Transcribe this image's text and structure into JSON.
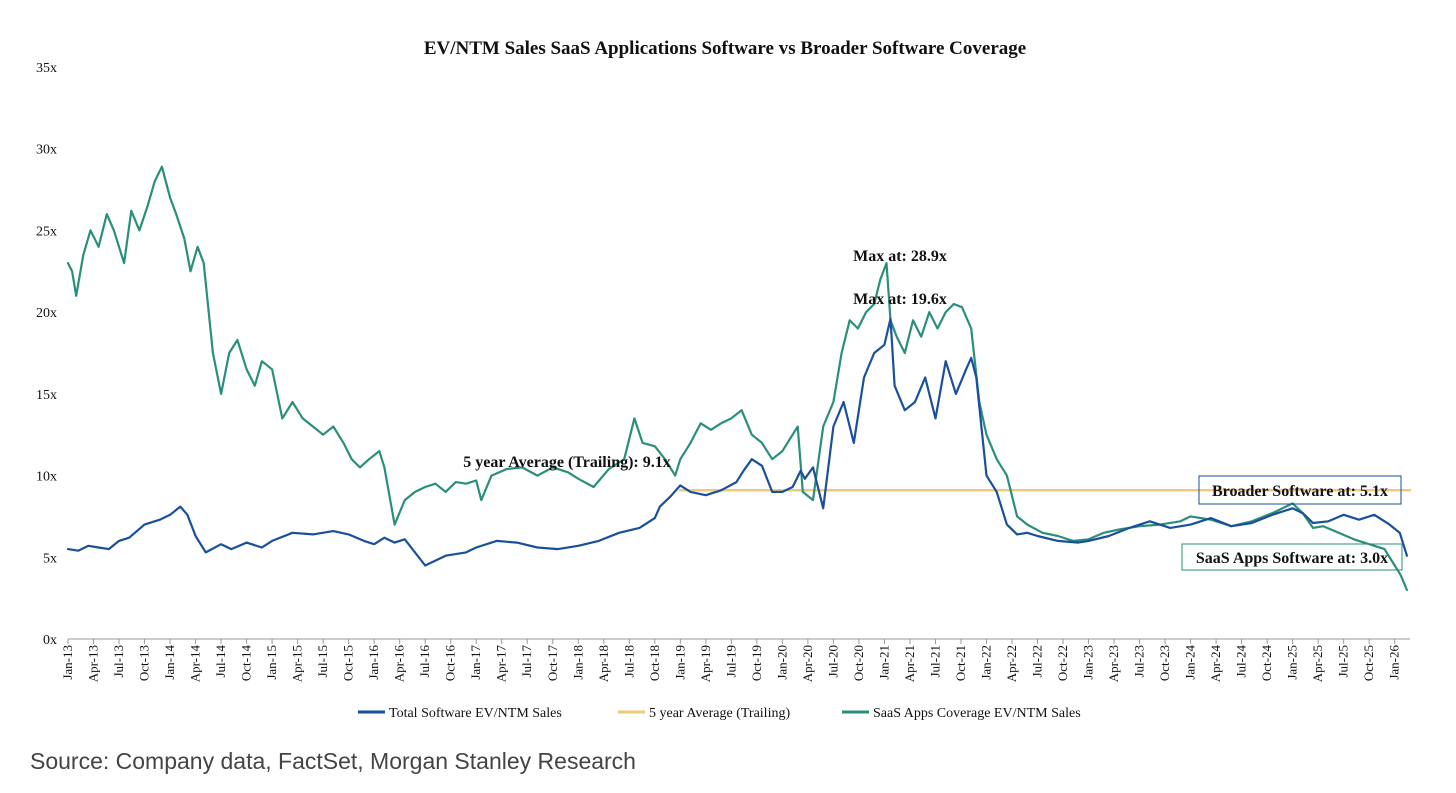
{
  "chart_data": {
    "type": "line",
    "title": "EV/NTM Sales SaaS Applications Software vs Broader Software Coverage",
    "ylim": [
      0,
      35
    ],
    "y_ticks": [
      0,
      5,
      10,
      15,
      20,
      25,
      30,
      35
    ],
    "y_tick_labels": [
      "0x",
      "5x",
      "10x",
      "15x",
      "20x",
      "25x",
      "30x",
      "35x"
    ],
    "x_range": [
      2013.0,
      2026.15
    ],
    "x_tick_labels": [
      "Jan-13",
      "Apr-13",
      "Jul-13",
      "Oct-13",
      "Jan-14",
      "Apr-14",
      "Jul-14",
      "Oct-14",
      "Jan-15",
      "Apr-15",
      "Jul-15",
      "Oct-15",
      "Jan-16",
      "Apr-16",
      "Jul-16",
      "Oct-16",
      "Jan-17",
      "Apr-17",
      "Jul-17",
      "Oct-17",
      "Jan-18",
      "Apr-18",
      "Jul-18",
      "Oct-18",
      "Jan-19",
      "Apr-19",
      "Jul-19",
      "Oct-19",
      "Jan-20",
      "Apr-20",
      "Jul-20",
      "Oct-20",
      "Jan-21",
      "Apr-21",
      "Jul-21",
      "Oct-21",
      "Jan-22",
      "Apr-22",
      "Jul-22",
      "Oct-22",
      "Jan-23",
      "Apr-23",
      "Jul-23",
      "Oct-23",
      "Jan-24",
      "Apr-24",
      "Jul-24",
      "Oct-24",
      "Jan-25",
      "Apr-25",
      "Jul-25",
      "Oct-25",
      "Jan-26"
    ],
    "legend": [
      "Total Software EV/NTM Sales",
      "5 year Average (Trailing)",
      "SaaS Apps Coverage EV/NTM Sales"
    ],
    "legend_position": "bottom",
    "series": [
      {
        "name": "Total Software EV/NTM Sales",
        "color": "#1a4f9c",
        "x": [
          2013.0,
          2013.1,
          2013.2,
          2013.3,
          2013.4,
          2013.5,
          2013.6,
          2013.75,
          2013.9,
          2014.0,
          2014.1,
          2014.17,
          2014.25,
          2014.35,
          2014.5,
          2014.6,
          2014.75,
          2014.9,
          2015.0,
          2015.2,
          2015.4,
          2015.6,
          2015.75,
          2015.9,
          2016.0,
          2016.1,
          2016.2,
          2016.3,
          2016.5,
          2016.7,
          2016.9,
          2017.0,
          2017.2,
          2017.4,
          2017.6,
          2017.8,
          2018.0,
          2018.2,
          2018.4,
          2018.6,
          2018.75,
          2018.8,
          2018.9,
          2019.0,
          2019.1,
          2019.25,
          2019.4,
          2019.55,
          2019.62,
          2019.7,
          2019.8,
          2019.9,
          2020.0,
          2020.1,
          2020.18,
          2020.22,
          2020.3,
          2020.4,
          2020.5,
          2020.6,
          2020.7,
          2020.8,
          2020.9,
          2021.0,
          2021.06,
          2021.1,
          2021.2,
          2021.3,
          2021.4,
          2021.5,
          2021.6,
          2021.7,
          2021.8,
          2021.85,
          2021.9,
          2022.0,
          2022.1,
          2022.2,
          2022.3,
          2022.4,
          2022.5,
          2022.7,
          2022.9,
          2023.0,
          2023.2,
          2023.4,
          2023.6,
          2023.8,
          2024.0,
          2024.2,
          2024.4,
          2024.6,
          2024.8,
          2025.0,
          2025.1,
          2025.2,
          2025.35,
          2025.5,
          2025.65,
          2025.8,
          2025.95,
          2026.05,
          2026.12
        ],
        "y": [
          5.5,
          5.4,
          5.7,
          5.6,
          5.5,
          6.0,
          6.2,
          7.0,
          7.3,
          7.6,
          8.1,
          7.6,
          6.3,
          5.3,
          5.8,
          5.5,
          5.9,
          5.6,
          6.0,
          6.5,
          6.4,
          6.6,
          6.4,
          6.0,
          5.8,
          6.2,
          5.9,
          6.1,
          4.5,
          5.1,
          5.3,
          5.6,
          6.0,
          5.9,
          5.6,
          5.5,
          5.7,
          6.0,
          6.5,
          6.8,
          7.4,
          8.1,
          8.7,
          9.4,
          9.0,
          8.8,
          9.1,
          9.6,
          10.3,
          11.0,
          10.6,
          9.0,
          9.0,
          9.3,
          10.3,
          9.8,
          10.5,
          8.0,
          13.0,
          14.5,
          12.0,
          16.0,
          17.5,
          18.0,
          19.6,
          15.5,
          14.0,
          14.5,
          16.0,
          13.5,
          17.0,
          15.0,
          16.5,
          17.2,
          16.0,
          10.0,
          9.0,
          7.0,
          6.4,
          6.5,
          6.3,
          6.0,
          5.9,
          6.0,
          6.3,
          6.8,
          7.2,
          6.8,
          7.0,
          7.4,
          6.9,
          7.1,
          7.6,
          8.0,
          7.7,
          7.1,
          7.2,
          7.6,
          7.3,
          7.6,
          7.0,
          6.5,
          5.1
        ]
      },
      {
        "name": "5 year Average (Trailing)",
        "color": "#f2c879",
        "x": [
          2019.0,
          2026.15
        ],
        "y": [
          9.1,
          9.1
        ]
      },
      {
        "name": "SaaS Apps Coverage EV/NTM Sales",
        "color": "#2a8f7a",
        "x": [
          2013.0,
          2013.04,
          2013.08,
          2013.15,
          2013.22,
          2013.3,
          2013.38,
          2013.45,
          2013.55,
          2013.62,
          2013.7,
          2013.78,
          2013.85,
          2013.92,
          2014.0,
          2014.06,
          2014.14,
          2014.2,
          2014.27,
          2014.33,
          2014.42,
          2014.5,
          2014.58,
          2014.66,
          2014.75,
          2014.83,
          2014.9,
          2015.0,
          2015.1,
          2015.2,
          2015.3,
          2015.4,
          2015.5,
          2015.6,
          2015.7,
          2015.78,
          2015.86,
          2015.95,
          2016.05,
          2016.1,
          2016.2,
          2016.3,
          2016.4,
          2016.5,
          2016.6,
          2016.7,
          2016.8,
          2016.9,
          2017.0,
          2017.05,
          2017.15,
          2017.3,
          2017.45,
          2017.6,
          2017.75,
          2017.9,
          2018.0,
          2018.15,
          2018.3,
          2018.45,
          2018.55,
          2018.63,
          2018.75,
          2018.85,
          2018.95,
          2019.0,
          2019.1,
          2019.2,
          2019.3,
          2019.4,
          2019.5,
          2019.6,
          2019.7,
          2019.8,
          2019.9,
          2020.0,
          2020.1,
          2020.15,
          2020.2,
          2020.3,
          2020.4,
          2020.5,
          2020.58,
          2020.66,
          2020.74,
          2020.82,
          2020.9,
          2020.96,
          2021.02,
          2021.06,
          2021.12,
          2021.2,
          2021.28,
          2021.36,
          2021.44,
          2021.52,
          2021.6,
          2021.68,
          2021.76,
          2021.85,
          2021.93,
          2022.0,
          2022.1,
          2022.2,
          2022.3,
          2022.4,
          2022.55,
          2022.7,
          2022.85,
          2023.0,
          2023.15,
          2023.3,
          2023.5,
          2023.7,
          2023.9,
          2024.0,
          2024.2,
          2024.4,
          2024.6,
          2024.8,
          2025.0,
          2025.1,
          2025.2,
          2025.3,
          2025.45,
          2025.6,
          2025.75,
          2025.9,
          2026.0,
          2026.06,
          2026.12
        ],
        "y": [
          23.0,
          22.5,
          21.0,
          23.5,
          25.0,
          24.0,
          26.0,
          25.0,
          23.0,
          26.2,
          25.0,
          26.5,
          28.0,
          28.9,
          27.0,
          26.0,
          24.5,
          22.5,
          24.0,
          23.0,
          17.5,
          15.0,
          17.5,
          18.3,
          16.5,
          15.5,
          17.0,
          16.5,
          13.5,
          14.5,
          13.5,
          13.0,
          12.5,
          13.0,
          12.0,
          11.0,
          10.5,
          11.0,
          11.5,
          10.5,
          7.0,
          8.5,
          9.0,
          9.3,
          9.5,
          9.0,
          9.6,
          9.5,
          9.7,
          8.5,
          10.0,
          10.4,
          10.5,
          10.0,
          10.5,
          10.2,
          9.8,
          9.3,
          10.4,
          11.0,
          13.5,
          12.0,
          11.8,
          11.0,
          10.0,
          11.0,
          12.0,
          13.2,
          12.8,
          13.2,
          13.5,
          14.0,
          12.5,
          12.0,
          11.0,
          11.5,
          12.5,
          13.0,
          9.0,
          8.5,
          13.0,
          14.5,
          17.5,
          19.5,
          19.0,
          20.0,
          20.5,
          22.0,
          23.0,
          19.5,
          18.5,
          17.5,
          19.5,
          18.5,
          20.0,
          19.0,
          20.0,
          20.5,
          20.3,
          19.0,
          14.5,
          12.5,
          11.0,
          10.0,
          7.5,
          7.0,
          6.5,
          6.3,
          6.0,
          6.1,
          6.5,
          6.7,
          6.9,
          7.0,
          7.2,
          7.5,
          7.3,
          6.9,
          7.2,
          7.7,
          8.3,
          7.7,
          6.8,
          6.9,
          6.5,
          6.1,
          5.8,
          5.5,
          4.5,
          3.9,
          3.0
        ]
      }
    ],
    "annotations": [
      {
        "text": "Max at: 28.9x"
      },
      {
        "text": "Max at: 19.6x"
      },
      {
        "text": "5 year Average (Trailing): 9.1x"
      },
      {
        "text": "Broader Software at: 5.1x"
      },
      {
        "text": "SaaS Apps Software at: 3.0x"
      }
    ]
  },
  "footer": {
    "source": "Source: Company data, FactSet, Morgan Stanley Research"
  }
}
